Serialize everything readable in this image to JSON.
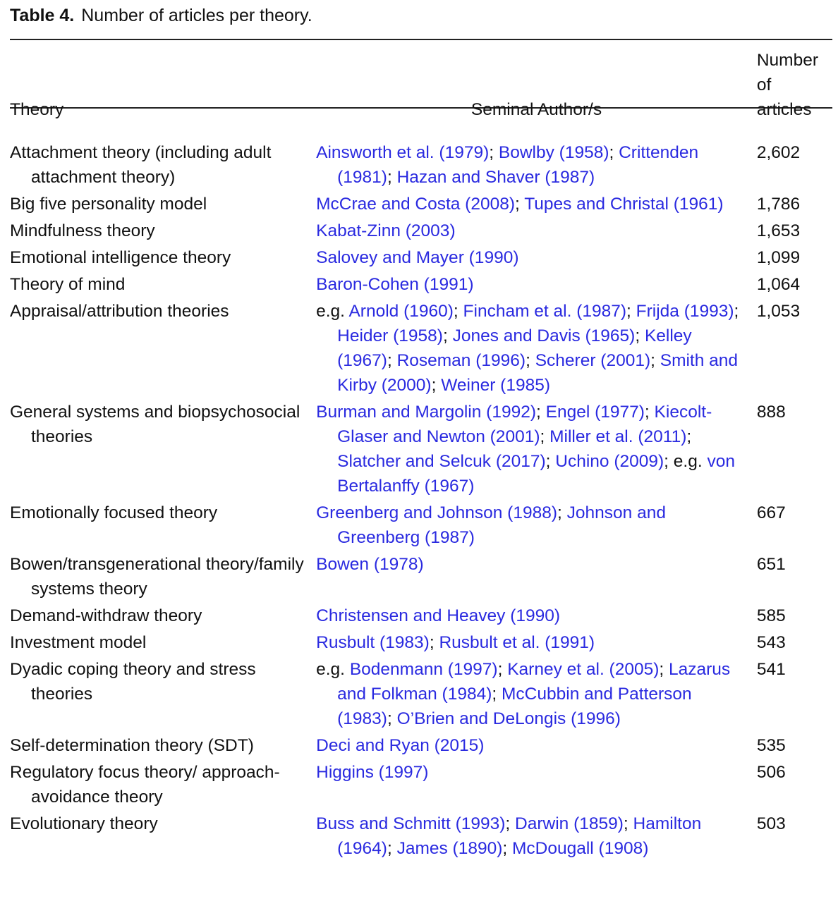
{
  "caption": {
    "label": "Table 4.",
    "text": "Number of articles per theory."
  },
  "headers": {
    "theory": "Theory",
    "authors": "Seminal Author/s",
    "count": "Number of articles"
  },
  "link_color": "#2a2ae0",
  "rows": [
    {
      "theory": "Attachment theory (including adult attachment theory)",
      "count": "2,602",
      "authors": [
        {
          "t": "Ainsworth et al. (1979)",
          "l": true
        },
        {
          "t": "; ",
          "l": false
        },
        {
          "t": "Bowlby (1958)",
          "l": true
        },
        {
          "t": "; ",
          "l": false
        },
        {
          "t": "Crittenden (1981)",
          "l": true
        },
        {
          "t": "; ",
          "l": false
        },
        {
          "t": "Hazan and Shaver (1987)",
          "l": true
        }
      ]
    },
    {
      "theory": "Big five personality model",
      "count": "1,786",
      "authors": [
        {
          "t": "McCrae and Costa (2008)",
          "l": true
        },
        {
          "t": "; ",
          "l": false
        },
        {
          "t": "Tupes and Christal (1961)",
          "l": true
        }
      ]
    },
    {
      "theory": "Mindfulness theory",
      "count": "1,653",
      "authors": [
        {
          "t": "Kabat-Zinn (2003)",
          "l": true
        }
      ]
    },
    {
      "theory": "Emotional intelligence theory",
      "count": "1,099",
      "authors": [
        {
          "t": "Salovey and Mayer (1990)",
          "l": true
        }
      ]
    },
    {
      "theory": "Theory of mind",
      "count": "1,064",
      "authors": [
        {
          "t": "Baron-Cohen (1991)",
          "l": true
        }
      ]
    },
    {
      "theory": "Appraisal/attribution theories",
      "count": "1,053",
      "authors": [
        {
          "t": "e.g. ",
          "l": false
        },
        {
          "t": "Arnold (1960)",
          "l": true
        },
        {
          "t": "; ",
          "l": false
        },
        {
          "t": "Fincham et al. (1987)",
          "l": true
        },
        {
          "t": "; ",
          "l": false
        },
        {
          "t": "Frijda (1993)",
          "l": true
        },
        {
          "t": "; ",
          "l": false
        },
        {
          "t": "Heider (1958)",
          "l": true
        },
        {
          "t": "; ",
          "l": false
        },
        {
          "t": "Jones and Davis (1965)",
          "l": true
        },
        {
          "t": "; ",
          "l": false
        },
        {
          "t": "Kelley (1967)",
          "l": true
        },
        {
          "t": "; ",
          "l": false
        },
        {
          "t": "Roseman (1996)",
          "l": true
        },
        {
          "t": "; ",
          "l": false
        },
        {
          "t": "Scherer (2001)",
          "l": true
        },
        {
          "t": "; ",
          "l": false
        },
        {
          "t": "Smith and Kirby (2000)",
          "l": true
        },
        {
          "t": "; ",
          "l": false
        },
        {
          "t": "Weiner (1985)",
          "l": true
        }
      ]
    },
    {
      "theory": "General systems and biopsychosocial theories",
      "count": "888",
      "authors": [
        {
          "t": "Burman and Margolin (1992)",
          "l": true
        },
        {
          "t": "; ",
          "l": false
        },
        {
          "t": "Engel (1977)",
          "l": true
        },
        {
          "t": "; ",
          "l": false
        },
        {
          "t": "Kiecolt-Glaser and Newton (2001)",
          "l": true
        },
        {
          "t": "; ",
          "l": false
        },
        {
          "t": "Miller et al. (2011)",
          "l": true
        },
        {
          "t": "; ",
          "l": false
        },
        {
          "t": "Slatcher and Selcuk (2017)",
          "l": true
        },
        {
          "t": "; ",
          "l": false
        },
        {
          "t": "Uchino (2009)",
          "l": true
        },
        {
          "t": "; e.g. ",
          "l": false
        },
        {
          "t": "von Bertalanffy (1967)",
          "l": true
        }
      ]
    },
    {
      "theory": "Emotionally focused theory",
      "count": "667",
      "authors": [
        {
          "t": "Greenberg and Johnson (1988)",
          "l": true
        },
        {
          "t": "; ",
          "l": false
        },
        {
          "t": "Johnson and Greenberg (1987)",
          "l": true
        }
      ]
    },
    {
      "theory": "Bowen/transgenerational theory/family systems theory",
      "count": "651",
      "authors": [
        {
          "t": "Bowen (1978)",
          "l": true
        }
      ]
    },
    {
      "theory": "Demand-withdraw theory",
      "count": "585",
      "authors": [
        {
          "t": "Christensen and Heavey (1990)",
          "l": true
        }
      ]
    },
    {
      "theory": "Investment model",
      "count": "543",
      "authors": [
        {
          "t": "Rusbult (1983)",
          "l": true
        },
        {
          "t": "; ",
          "l": false
        },
        {
          "t": "Rusbult et al. (1991)",
          "l": true
        }
      ]
    },
    {
      "theory": "Dyadic coping theory and stress theories",
      "count": "541",
      "authors": [
        {
          "t": "e.g. ",
          "l": false
        },
        {
          "t": "Bodenmann (1997)",
          "l": true
        },
        {
          "t": "; ",
          "l": false
        },
        {
          "t": "Karney et al. (2005)",
          "l": true
        },
        {
          "t": "; ",
          "l": false
        },
        {
          "t": "Lazarus and Folkman (1984)",
          "l": true
        },
        {
          "t": "; ",
          "l": false
        },
        {
          "t": "McCubbin and Patterson (1983)",
          "l": true
        },
        {
          "t": "; ",
          "l": false
        },
        {
          "t": "O’Brien and DeLongis (1996)",
          "l": true
        }
      ]
    },
    {
      "theory": "Self-determination theory (SDT)",
      "count": "535",
      "authors": [
        {
          "t": "Deci and Ryan (2015)",
          "l": true
        }
      ]
    },
    {
      "theory": "Regulatory focus theory/ approach-avoidance theory",
      "count": "506",
      "authors": [
        {
          "t": "Higgins (1997)",
          "l": true
        }
      ]
    },
    {
      "theory": "Evolutionary theory",
      "count": "503",
      "authors": [
        {
          "t": "Buss and Schmitt (1993)",
          "l": true
        },
        {
          "t": "; ",
          "l": false
        },
        {
          "t": "Darwin (1859)",
          "l": true
        },
        {
          "t": "; ",
          "l": false
        },
        {
          "t": "Hamilton (1964)",
          "l": true
        },
        {
          "t": "; ",
          "l": false
        },
        {
          "t": "James (1890)",
          "l": true
        },
        {
          "t": "; ",
          "l": false
        },
        {
          "t": "McDougall (1908)",
          "l": true
        }
      ]
    }
  ]
}
